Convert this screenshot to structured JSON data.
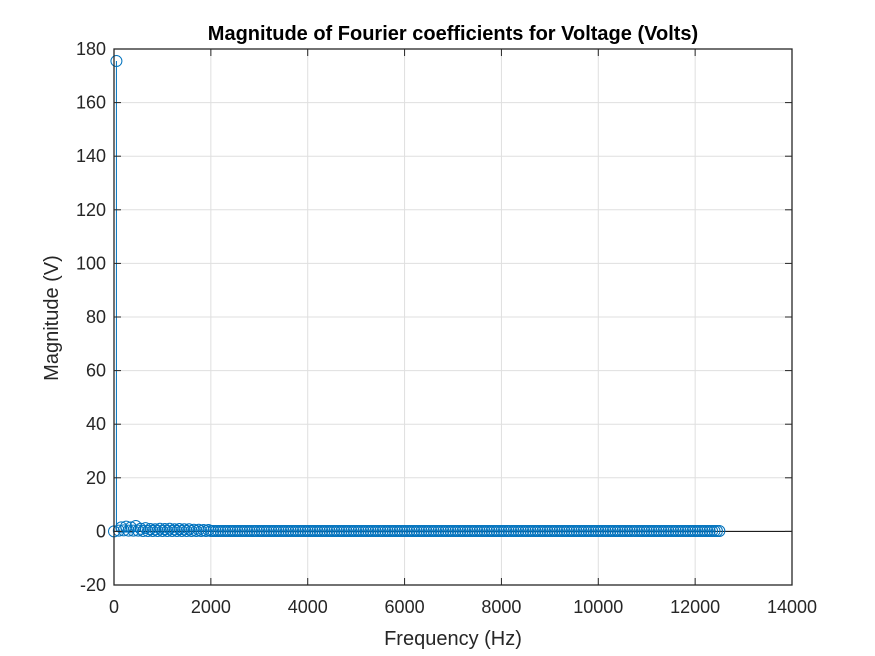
{
  "chart_data": {
    "type": "stem",
    "title": "Magnitude of Fourier coefficients for Voltage (Volts)",
    "xlabel": "Frequency (Hz)",
    "ylabel": "Magnitude (V)",
    "xlim": [
      0,
      14000
    ],
    "ylim": [
      -20,
      180
    ],
    "xticks": [
      0,
      2000,
      4000,
      6000,
      8000,
      10000,
      12000,
      14000
    ],
    "xtick_labels": [
      "0",
      "2000",
      "4000",
      "6000",
      "8000",
      "10000",
      "12000",
      "14000"
    ],
    "yticks": [
      -20,
      0,
      20,
      40,
      60,
      80,
      100,
      120,
      140,
      160,
      180
    ],
    "ytick_labels": [
      "-20",
      "0",
      "20",
      "40",
      "60",
      "80",
      "100",
      "120",
      "140",
      "160",
      "180"
    ],
    "grid": true,
    "marker": "circle",
    "series_color": "#0072BD",
    "baseline_value": 0,
    "series": [
      {
        "x_start": 0,
        "x_step": 50,
        "x_end": 12500,
        "values_nonzero": [
          {
            "x": 0,
            "y": 0
          },
          {
            "x": 50,
            "y": 175.5
          },
          {
            "x": 100,
            "y": 0.3
          },
          {
            "x": 150,
            "y": 1.5
          },
          {
            "x": 200,
            "y": 0.4
          },
          {
            "x": 250,
            "y": 1.8
          },
          {
            "x": 300,
            "y": 0.3
          },
          {
            "x": 350,
            "y": 1.5
          },
          {
            "x": 400,
            "y": 0.3
          },
          {
            "x": 450,
            "y": 2.0
          },
          {
            "x": 500,
            "y": 0.3
          },
          {
            "x": 550,
            "y": 1.0
          },
          {
            "x": 650,
            "y": 1.2
          },
          {
            "x": 750,
            "y": 0.9
          },
          {
            "x": 850,
            "y": 0.8
          },
          {
            "x": 950,
            "y": 1.0
          },
          {
            "x": 1050,
            "y": 0.9
          },
          {
            "x": 1150,
            "y": 1.0
          },
          {
            "x": 1250,
            "y": 0.8
          },
          {
            "x": 1350,
            "y": 0.9
          },
          {
            "x": 1450,
            "y": 0.8
          },
          {
            "x": 1550,
            "y": 0.8
          },
          {
            "x": 1650,
            "y": 0.6
          },
          {
            "x": 1750,
            "y": 0.6
          },
          {
            "x": 1850,
            "y": 0.5
          },
          {
            "x": 1950,
            "y": 0.5
          }
        ],
        "default_value": 0.15
      }
    ]
  }
}
